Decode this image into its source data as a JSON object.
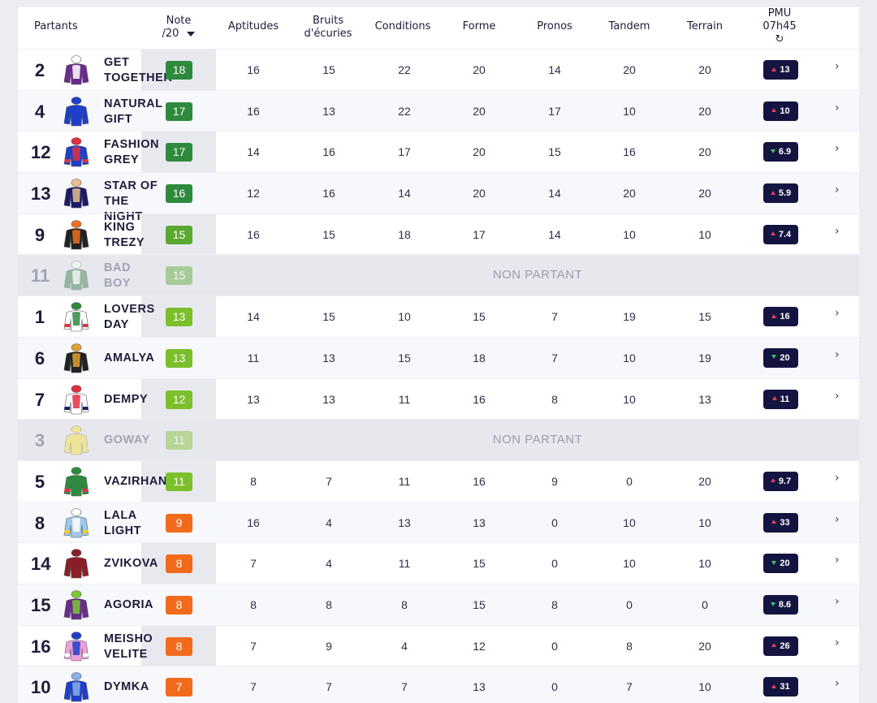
{
  "header": {
    "partants": "Partants",
    "note_line1": "Note",
    "note_line2": "/20",
    "aptitudes": "Aptitudes",
    "bruits_line1": "Bruits",
    "bruits_line2": "d'écuries",
    "conditions": "Conditions",
    "forme": "Forme",
    "pronos": "Pronos",
    "tandem": "Tandem",
    "terrain": "Terrain",
    "pmu_line1": "PMU",
    "pmu_line2": "07h45",
    "refresh_icon": "refresh-icon",
    "sort_icon": "caret-down-icon"
  },
  "non_partant_label": "NON PARTANT",
  "colors": {
    "dark_green": "#2e8b3e",
    "green": "#5aa830",
    "light_green": "#7cbf2c",
    "orange": "#f26b1d",
    "odds_bg": "#141440",
    "up": "#e0405a",
    "down": "#3cc46a"
  },
  "rows": [
    {
      "num": "2",
      "name1": "GET",
      "name2": "TOGETHER",
      "note": "18",
      "note_color": "#2e8b3e",
      "aptitudes": "16",
      "bruits": "15",
      "conditions": "22",
      "forme": "20",
      "pronos": "14",
      "tandem": "20",
      "terrain": "20",
      "odds": "13",
      "trend": "up",
      "silk": [
        "#6a2c8c",
        "#ffffff",
        "#6a2c8c"
      ],
      "np": false
    },
    {
      "num": "4",
      "name1": "NATURAL",
      "name2": "GIFT",
      "note": "17",
      "note_color": "#2e8b3e",
      "aptitudes": "16",
      "bruits": "13",
      "conditions": "22",
      "forme": "20",
      "pronos": "17",
      "tandem": "10",
      "terrain": "20",
      "odds": "10",
      "trend": "up",
      "silk": [
        "#1e3fc9",
        "#1e3fc9",
        "#1e3fc9"
      ],
      "np": false
    },
    {
      "num": "12",
      "name1": "FASHION",
      "name2": "GREY",
      "note": "17",
      "note_color": "#2e8b3e",
      "aptitudes": "14",
      "bruits": "16",
      "conditions": "17",
      "forme": "20",
      "pronos": "15",
      "tandem": "16",
      "terrain": "20",
      "odds": "6.9",
      "trend": "down",
      "silk": [
        "#1e3fc9",
        "#e03040",
        "#e03040"
      ],
      "np": false
    },
    {
      "num": "13",
      "name1": "STAR OF",
      "name2": "THE NIGHT",
      "note": "16",
      "note_color": "#2e8b3e",
      "aptitudes": "12",
      "bruits": "16",
      "conditions": "14",
      "forme": "20",
      "pronos": "14",
      "tandem": "20",
      "terrain": "20",
      "odds": "5.9",
      "trend": "up",
      "silk": [
        "#1a1a6a",
        "#e8c090",
        "#1a1a6a"
      ],
      "np": false
    },
    {
      "num": "9",
      "name1": "KING",
      "name2": "TREZY",
      "note": "15",
      "note_color": "#5aa830",
      "aptitudes": "16",
      "bruits": "15",
      "conditions": "18",
      "forme": "17",
      "pronos": "14",
      "tandem": "10",
      "terrain": "10",
      "odds": "7.4",
      "trend": "up",
      "silk": [
        "#222222",
        "#f07020",
        "#222222"
      ],
      "np": false
    },
    {
      "num": "11",
      "name1": "BAD",
      "name2": "BOY",
      "note": "15",
      "note_color": "#5aa830",
      "odds": "",
      "trend": "",
      "silk": [
        "#2e7a3a",
        "#ffffff",
        "#2e7a3a"
      ],
      "np": true
    },
    {
      "num": "1",
      "name1": "LOVERS",
      "name2": "DAY",
      "note": "13",
      "note_color": "#7cbf2c",
      "aptitudes": "14",
      "bruits": "15",
      "conditions": "10",
      "forme": "15",
      "pronos": "7",
      "tandem": "19",
      "terrain": "15",
      "odds": "16",
      "trend": "up",
      "silk": [
        "#ffffff",
        "#2e8a3e",
        "#e03040"
      ],
      "np": false
    },
    {
      "num": "6",
      "name1": "AMALYA",
      "name2": "",
      "note": "13",
      "note_color": "#7cbf2c",
      "aptitudes": "11",
      "bruits": "13",
      "conditions": "15",
      "forme": "18",
      "pronos": "7",
      "tandem": "10",
      "terrain": "19",
      "odds": "20",
      "trend": "down",
      "silk": [
        "#222222",
        "#e0a030",
        "#222222"
      ],
      "np": false
    },
    {
      "num": "7",
      "name1": "DEMPY",
      "name2": "",
      "note": "12",
      "note_color": "#7cbf2c",
      "aptitudes": "13",
      "bruits": "13",
      "conditions": "11",
      "forme": "16",
      "pronos": "8",
      "tandem": "10",
      "terrain": "13",
      "odds": "11",
      "trend": "up",
      "silk": [
        "#ffffff",
        "#e03040",
        "#1a1a6a"
      ],
      "np": false
    },
    {
      "num": "3",
      "name1": "GOWAY",
      "name2": "",
      "note": "11",
      "note_color": "#7cbf2c",
      "odds": "",
      "trend": "",
      "silk": [
        "#f5e030",
        "#f5e030",
        "#f5e030"
      ],
      "np": true
    },
    {
      "num": "5",
      "name1": "VAZIRHAN",
      "name2": "",
      "note": "11",
      "note_color": "#7cbf2c",
      "aptitudes": "8",
      "bruits": "7",
      "conditions": "11",
      "forme": "16",
      "pronos": "9",
      "tandem": "0",
      "terrain": "20",
      "odds": "9.7",
      "trend": "up",
      "silk": [
        "#2e8a3e",
        "#2e8a3e",
        "#e03040"
      ],
      "np": false
    },
    {
      "num": "8",
      "name1": "LALA",
      "name2": "LIGHT",
      "note": "9",
      "note_color": "#f26b1d",
      "aptitudes": "16",
      "bruits": "4",
      "conditions": "13",
      "forme": "13",
      "pronos": "0",
      "tandem": "10",
      "terrain": "10",
      "odds": "33",
      "trend": "up",
      "silk": [
        "#9ec8ec",
        "#ffffff",
        "#f0d020"
      ],
      "np": false
    },
    {
      "num": "14",
      "name1": "ZVIKOVA",
      "name2": "",
      "note": "8",
      "note_color": "#f26b1d",
      "aptitudes": "7",
      "bruits": "4",
      "conditions": "11",
      "forme": "15",
      "pronos": "0",
      "tandem": "10",
      "terrain": "10",
      "odds": "20",
      "trend": "down",
      "silk": [
        "#8a1e28",
        "#8a1e28",
        "#8a1e28"
      ],
      "np": false
    },
    {
      "num": "15",
      "name1": "AGORIA",
      "name2": "",
      "note": "8",
      "note_color": "#f26b1d",
      "aptitudes": "8",
      "bruits": "8",
      "conditions": "8",
      "forme": "15",
      "pronos": "8",
      "tandem": "0",
      "terrain": "0",
      "odds": "8.6",
      "trend": "down",
      "silk": [
        "#6a2c8c",
        "#7cc830",
        "#6a2c8c"
      ],
      "np": false
    },
    {
      "num": "16",
      "name1": "MEISHO",
      "name2": "VELITE",
      "note": "8",
      "note_color": "#f26b1d",
      "aptitudes": "7",
      "bruits": "9",
      "conditions": "4",
      "forme": "12",
      "pronos": "0",
      "tandem": "8",
      "terrain": "20",
      "odds": "26",
      "trend": "up",
      "silk": [
        "#f0a0d8",
        "#1e3fc9",
        "#ffffff"
      ],
      "np": false
    },
    {
      "num": "10",
      "name1": "DYMKA",
      "name2": "",
      "note": "7",
      "note_color": "#f26b1d",
      "aptitudes": "7",
      "bruits": "7",
      "conditions": "7",
      "forme": "13",
      "pronos": "0",
      "tandem": "7",
      "terrain": "10",
      "odds": "31",
      "trend": "up",
      "silk": [
        "#1e3fc9",
        "#8ab0e8",
        "#1e3fc9"
      ],
      "np": false
    }
  ]
}
